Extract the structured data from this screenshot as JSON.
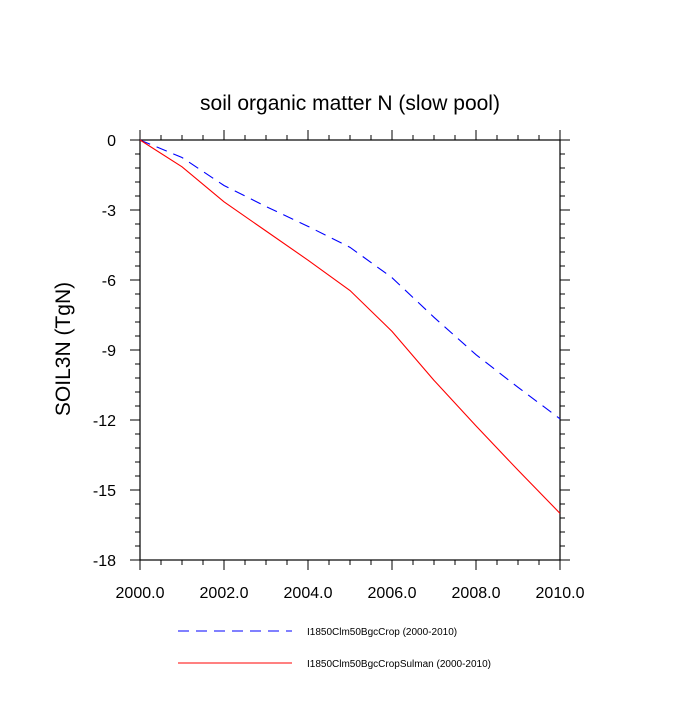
{
  "chart_data": {
    "type": "line",
    "title": "soil organic matter N (slow pool)",
    "xlabel": "",
    "ylabel": "SOIL3N  (TgN)",
    "xlim": [
      2000,
      2010
    ],
    "ylim": [
      -18,
      0
    ],
    "x_major_ticks": [
      2000,
      2002,
      2004,
      2006,
      2008,
      2010
    ],
    "x_tick_labels": [
      "2000.0",
      "2002.0",
      "2004.0",
      "2006.0",
      "2008.0",
      "2010.0"
    ],
    "x_minor_ticks": [
      2000.5,
      2001,
      2001.5,
      2002.5,
      2003,
      2003.5,
      2004.5,
      2005,
      2005.5,
      2006.5,
      2007,
      2007.5,
      2008.5,
      2009,
      2009.5
    ],
    "y_major_ticks": [
      0,
      -3,
      -6,
      -9,
      -12,
      -15,
      -18
    ],
    "y_tick_labels": [
      "0",
      "-3",
      "-6",
      "-9",
      "-12",
      "-15",
      "-18"
    ],
    "y_minor_ticks": [
      -0.6,
      -1.2,
      -1.8,
      -2.4,
      -3.6,
      -4.2,
      -4.8,
      -5.4,
      -6.6,
      -7.2,
      -7.8,
      -8.4,
      -9.6,
      -10.2,
      -10.8,
      -11.4,
      -12.6,
      -13.2,
      -13.8,
      -14.4,
      -15.6,
      -16.2,
      -16.8,
      -17.4
    ],
    "grid": false,
    "legend_position": "bottom",
    "series": [
      {
        "name": "I1850Clm50BgcCrop (2000-2010)",
        "color": "#0000ff",
        "line_style": "dashed",
        "x": [
          2000,
          2001,
          2002,
          2003,
          2004,
          2005,
          2006,
          2007,
          2008,
          2009,
          2010
        ],
        "y": [
          0,
          -0.75,
          -1.95,
          -2.85,
          -3.7,
          -4.6,
          -5.9,
          -7.6,
          -9.2,
          -10.6,
          -11.95
        ]
      },
      {
        "name": "I1850Clm50BgcCropSulman (2000-2010)",
        "color": "#ff0000",
        "line_style": "solid",
        "x": [
          2000,
          2001,
          2002,
          2003,
          2004,
          2005,
          2006,
          2007,
          2008,
          2009,
          2010
        ],
        "y": [
          0,
          -1.15,
          -2.65,
          -3.9,
          -5.15,
          -6.45,
          -8.2,
          -10.3,
          -12.25,
          -14.15,
          -16.0
        ]
      }
    ]
  }
}
